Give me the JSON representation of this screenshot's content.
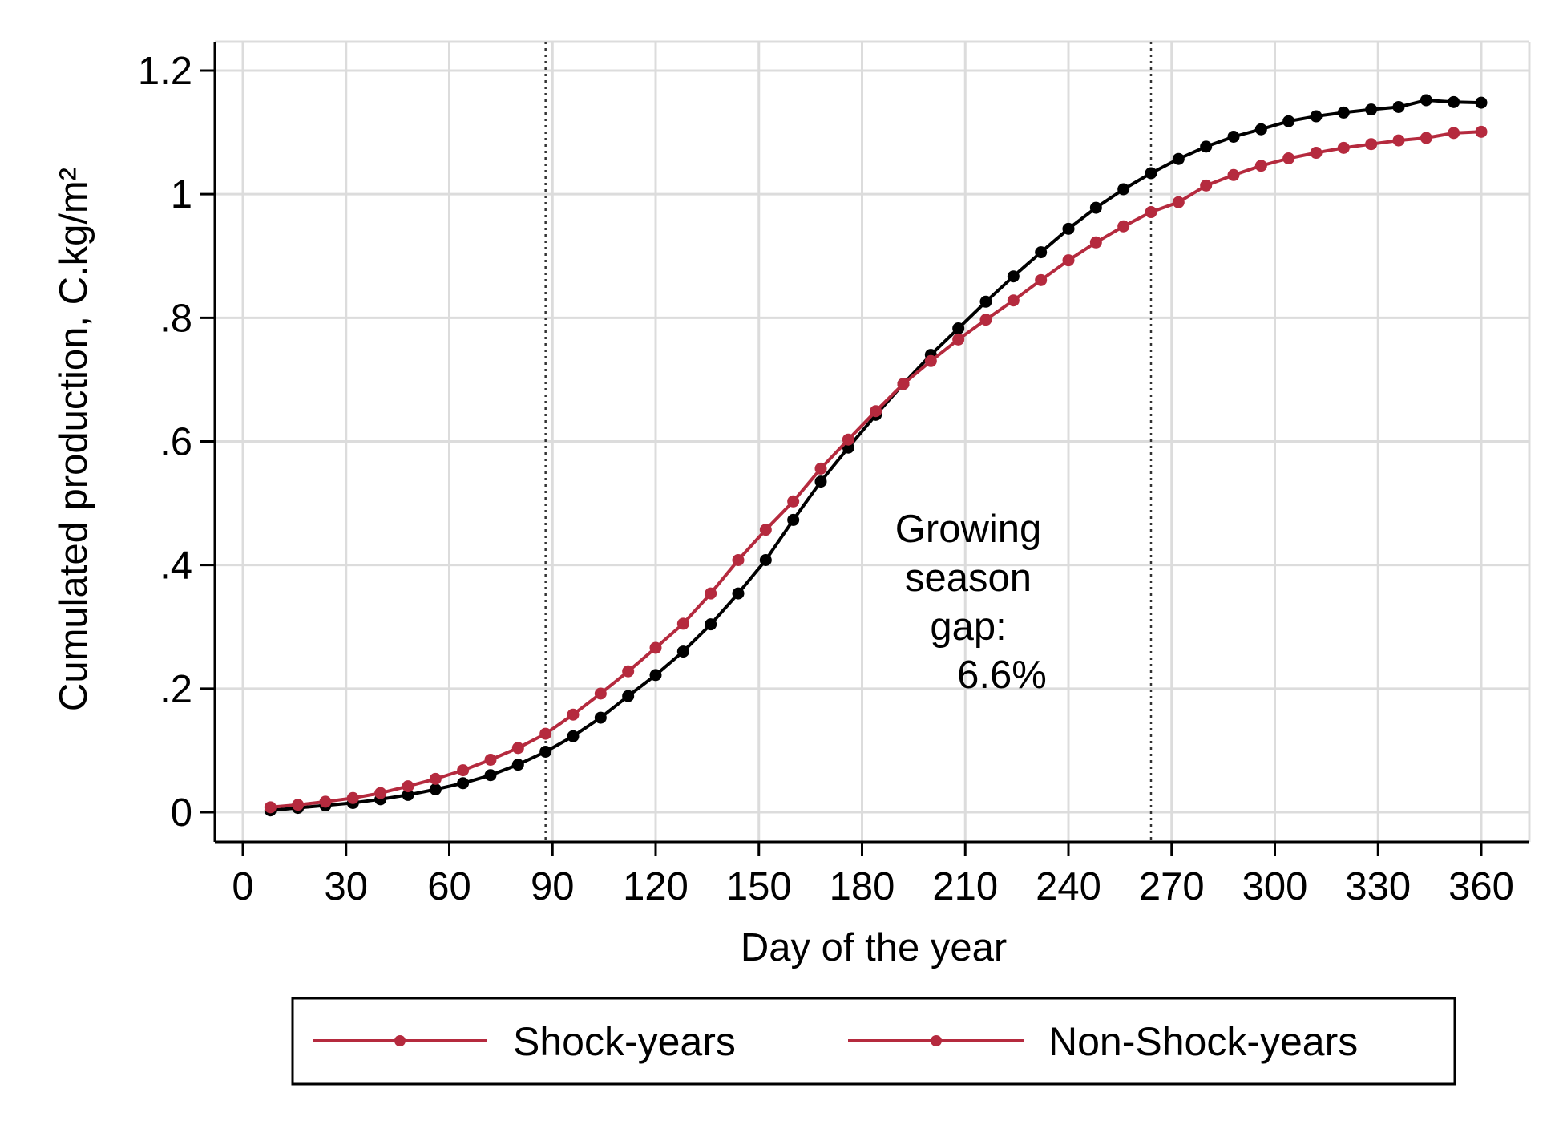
{
  "chart_data": {
    "type": "line",
    "xlabel": "Day of the year",
    "ylabel": "Cumulated production,  C.kg/m²",
    "xlim": [
      -5,
      365
    ],
    "ylim": [
      -0.05,
      1.25
    ],
    "x_ticks": [
      0,
      30,
      60,
      90,
      120,
      150,
      180,
      210,
      240,
      270,
      300,
      330,
      360
    ],
    "y_ticks": [
      {
        "value": 0,
        "label": "0"
      },
      {
        "value": 0.2,
        "label": ".2"
      },
      {
        "value": 0.4,
        "label": ".4"
      },
      {
        "value": 0.6,
        "label": ".6"
      },
      {
        "value": 0.8,
        "label": ".8"
      },
      {
        "value": 1.0,
        "label": "1"
      },
      {
        "value": 1.2,
        "label": "1.2"
      }
    ],
    "grid": true,
    "vlines": [
      88,
      264
    ],
    "annotation": {
      "lines": [
        "Growing",
        "season",
        "gap:",
        "6.6%"
      ],
      "x": 210
    },
    "legend_position": "bottom",
    "legend": [
      {
        "label": "Shock-years",
        "color": "#b52a3e"
      },
      {
        "label": "Non-Shock-years",
        "color": "#b52a3e"
      }
    ],
    "series": [
      {
        "color": "#000000",
        "x": [
          8,
          16,
          24,
          32,
          40,
          48,
          56,
          64,
          72,
          80,
          88,
          96,
          104,
          112,
          120,
          128,
          136,
          144,
          152,
          160,
          168,
          176,
          184,
          192,
          200,
          208,
          216,
          224,
          232,
          240,
          248,
          256,
          264,
          272,
          280,
          288,
          296,
          304,
          312,
          320,
          328,
          336,
          344,
          352,
          360
        ],
        "y": [
          0.003,
          0.007,
          0.011,
          0.015,
          0.021,
          0.028,
          0.037,
          0.047,
          0.06,
          0.077,
          0.098,
          0.123,
          0.153,
          0.188,
          0.222,
          0.26,
          0.304,
          0.354,
          0.408,
          0.473,
          0.535,
          0.59,
          0.643,
          0.693,
          0.74,
          0.783,
          0.826,
          0.867,
          0.906,
          0.944,
          0.978,
          1.008,
          1.034,
          1.057,
          1.077,
          1.093,
          1.105,
          1.118,
          1.126,
          1.132,
          1.137,
          1.141,
          1.152,
          1.149,
          1.148
        ]
      },
      {
        "color": "#b52a3e",
        "x": [
          8,
          16,
          24,
          32,
          40,
          48,
          56,
          64,
          72,
          80,
          88,
          96,
          104,
          112,
          120,
          128,
          136,
          144,
          152,
          160,
          168,
          176,
          184,
          192,
          200,
          208,
          216,
          224,
          232,
          240,
          248,
          256,
          264,
          272,
          280,
          288,
          296,
          304,
          312,
          320,
          328,
          336,
          344,
          352,
          360
        ],
        "y": [
          0.008,
          0.012,
          0.017,
          0.023,
          0.031,
          0.042,
          0.054,
          0.068,
          0.085,
          0.104,
          0.127,
          0.158,
          0.192,
          0.228,
          0.266,
          0.305,
          0.354,
          0.408,
          0.457,
          0.503,
          0.556,
          0.603,
          0.649,
          0.693,
          0.73,
          0.765,
          0.797,
          0.828,
          0.861,
          0.893,
          0.922,
          0.948,
          0.971,
          0.987,
          1.014,
          1.031,
          1.046,
          1.058,
          1.067,
          1.075,
          1.081,
          1.087,
          1.091,
          1.099,
          1.101
        ]
      }
    ]
  }
}
